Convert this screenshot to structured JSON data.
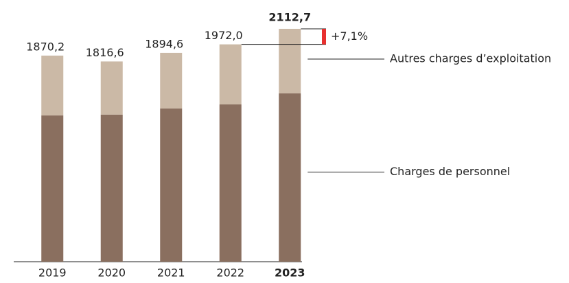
{
  "chart_data": {
    "type": "stacked-bar",
    "categories": [
      "2019",
      "2020",
      "2021",
      "2022",
      "2023"
    ],
    "series": [
      {
        "name": "Charges de personnel",
        "color": "#8a6f5f",
        "values": [
          1327,
          1334,
          1390,
          1427,
          1527
        ]
      },
      {
        "name": "Autres charges d’exploitation",
        "color": "#cbb9a6",
        "values": [
          543,
          483,
          505,
          545,
          586
        ]
      }
    ],
    "totals": [
      1870.2,
      1816.6,
      1894.6,
      1972.0,
      2112.7
    ],
    "total_labels": [
      "1870,2",
      "1816,6",
      "1894,6",
      "1972,0",
      "2112,7"
    ],
    "change": {
      "label": "+7,1%",
      "color": "#e8302f"
    }
  }
}
